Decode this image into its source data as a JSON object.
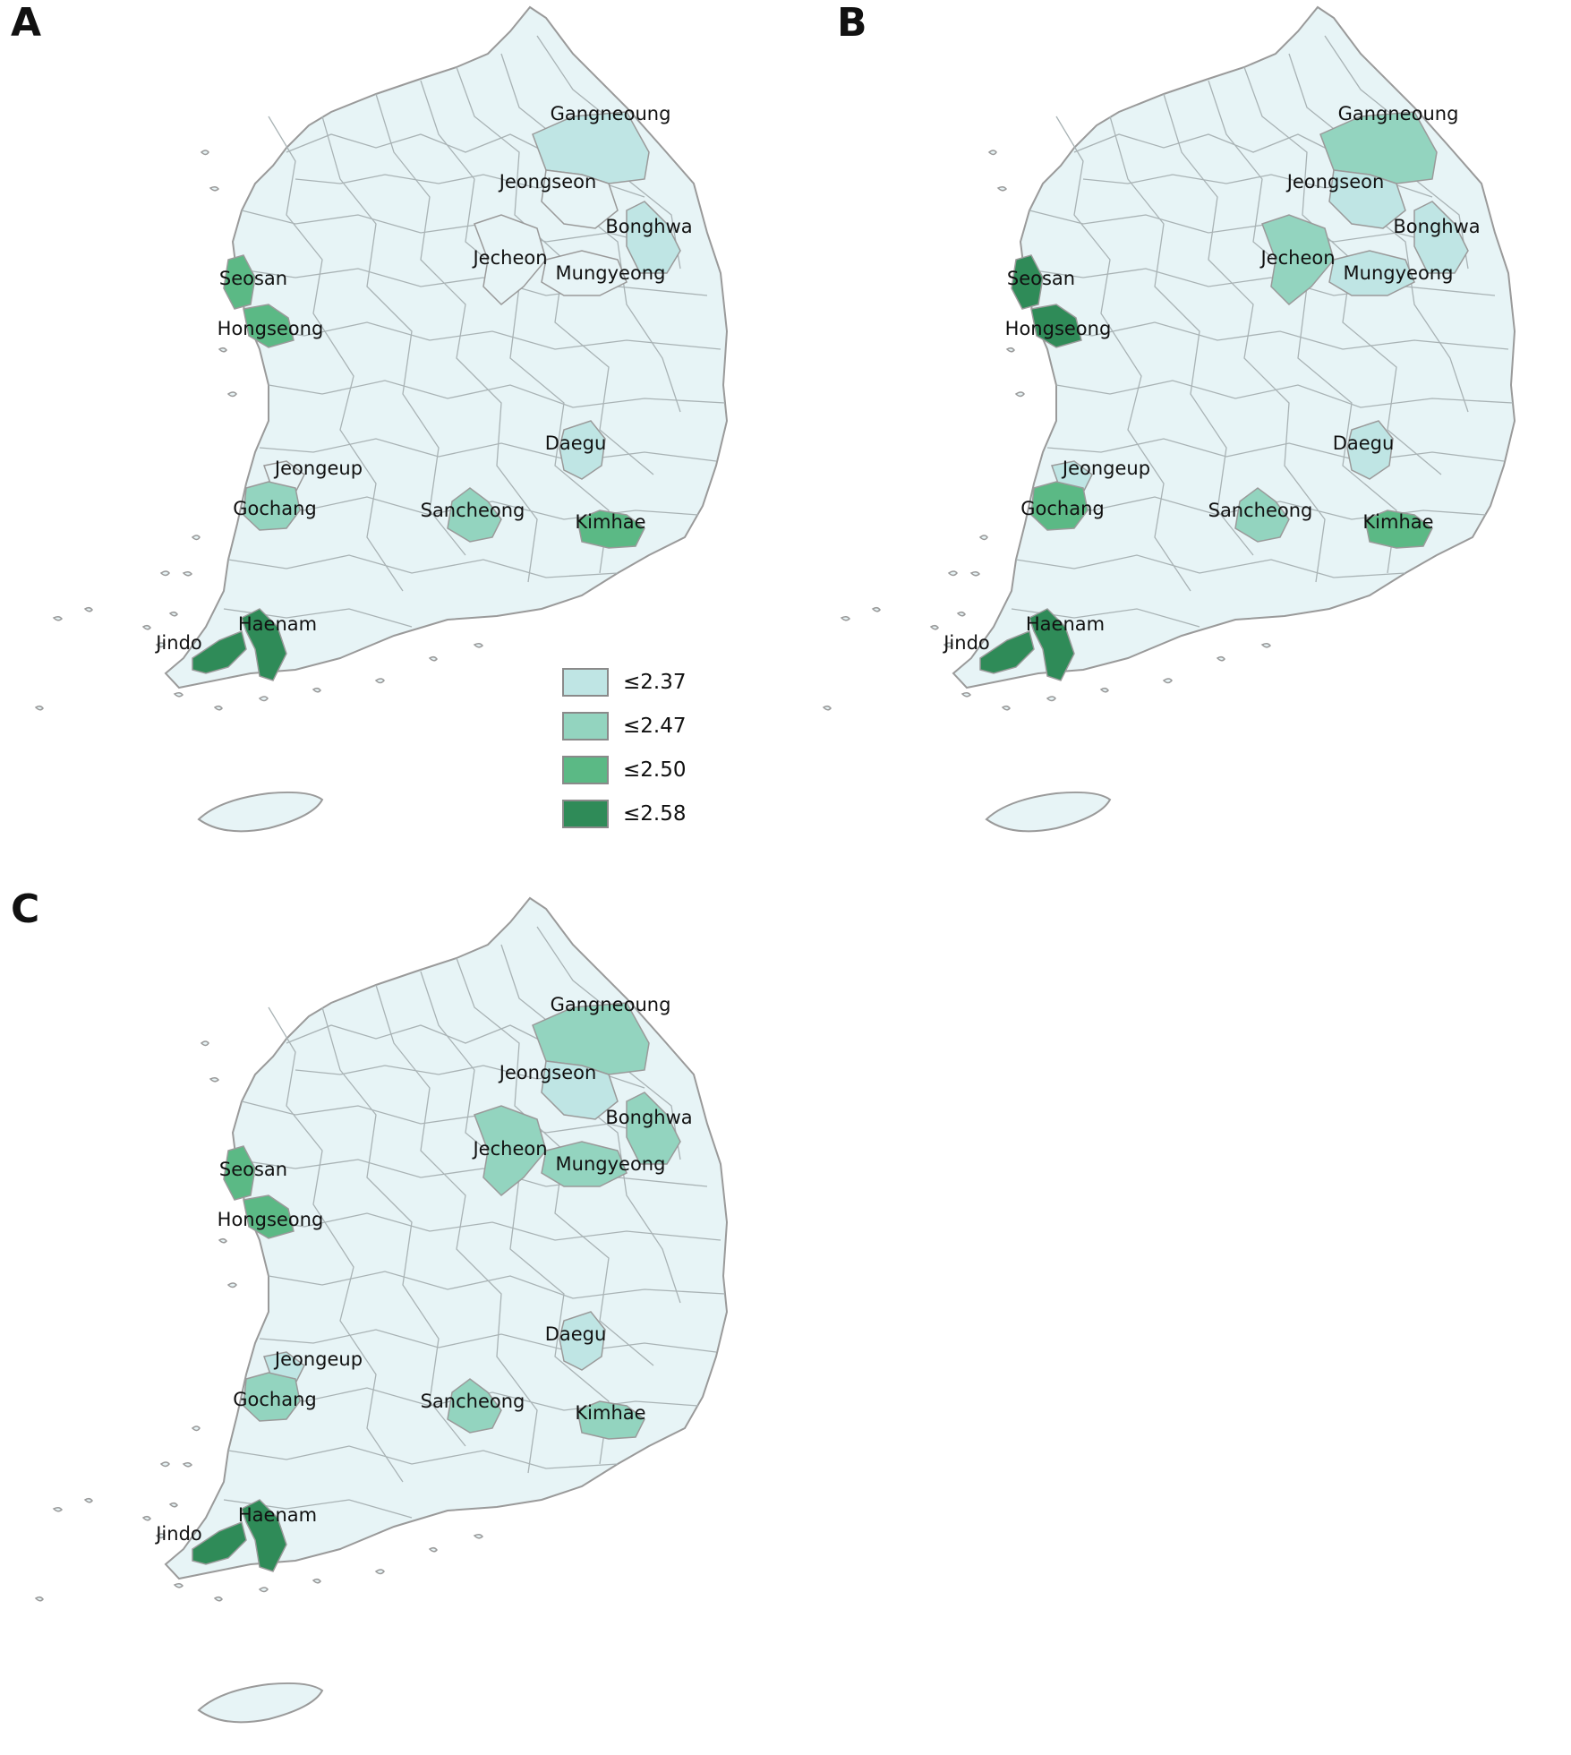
{
  "colors": {
    "base": "#e7f4f6",
    "border": "#9a9a9a",
    "c1": "#bfe5e4",
    "c2": "#93d4bf",
    "c3": "#5bb985",
    "c4": "#2f8b58"
  },
  "legend": [
    {
      "label": "≤2.37",
      "cls": "c1"
    },
    {
      "label": "≤2.47",
      "cls": "c2"
    },
    {
      "label": "≤2.50",
      "cls": "c3"
    },
    {
      "label": "≤2.58",
      "cls": "c4"
    }
  ],
  "panels": [
    {
      "letter": "A",
      "regions": [
        {
          "name": "Gangneoung",
          "cls": "c1"
        },
        {
          "name": "Jeongseon",
          "cls": "base"
        },
        {
          "name": "Bonghwa",
          "cls": "c1"
        },
        {
          "name": "Jecheon",
          "cls": "base"
        },
        {
          "name": "Mungyeong",
          "cls": "base"
        },
        {
          "name": "Seosan",
          "cls": "c3"
        },
        {
          "name": "Hongseong",
          "cls": "c3"
        },
        {
          "name": "Daegu",
          "cls": "c1"
        },
        {
          "name": "Jeongeup",
          "cls": "base"
        },
        {
          "name": "Gochang",
          "cls": "c2"
        },
        {
          "name": "Sancheong",
          "cls": "c2"
        },
        {
          "name": "Kimhae",
          "cls": "c3"
        },
        {
          "name": "Haenam",
          "cls": "c4"
        },
        {
          "name": "Jindo",
          "cls": "c4"
        }
      ]
    },
    {
      "letter": "B",
      "regions": [
        {
          "name": "Gangneoung",
          "cls": "c2"
        },
        {
          "name": "Jeongseon",
          "cls": "c1"
        },
        {
          "name": "Bonghwa",
          "cls": "c1"
        },
        {
          "name": "Jecheon",
          "cls": "c2"
        },
        {
          "name": "Mungyeong",
          "cls": "c1"
        },
        {
          "name": "Seosan",
          "cls": "c4"
        },
        {
          "name": "Hongseong",
          "cls": "c4"
        },
        {
          "name": "Daegu",
          "cls": "c1"
        },
        {
          "name": "Jeongeup",
          "cls": "c1"
        },
        {
          "name": "Gochang",
          "cls": "c3"
        },
        {
          "name": "Sancheong",
          "cls": "c2"
        },
        {
          "name": "Kimhae",
          "cls": "c3"
        },
        {
          "name": "Haenam",
          "cls": "c4"
        },
        {
          "name": "Jindo",
          "cls": "c4"
        }
      ]
    },
    {
      "letter": "C",
      "regions": [
        {
          "name": "Gangneoung",
          "cls": "c2"
        },
        {
          "name": "Jeongseon",
          "cls": "c1"
        },
        {
          "name": "Bonghwa",
          "cls": "c2"
        },
        {
          "name": "Jecheon",
          "cls": "c2"
        },
        {
          "name": "Mungyeong",
          "cls": "c2"
        },
        {
          "name": "Seosan",
          "cls": "c3"
        },
        {
          "name": "Hongseong",
          "cls": "c3"
        },
        {
          "name": "Daegu",
          "cls": "c1"
        },
        {
          "name": "Jeongeup",
          "cls": "c1"
        },
        {
          "name": "Gochang",
          "cls": "c2"
        },
        {
          "name": "Sancheong",
          "cls": "c2"
        },
        {
          "name": "Kimhae",
          "cls": "c2"
        },
        {
          "name": "Haenam",
          "cls": "c4"
        },
        {
          "name": "Jindo",
          "cls": "c4"
        }
      ]
    }
  ]
}
